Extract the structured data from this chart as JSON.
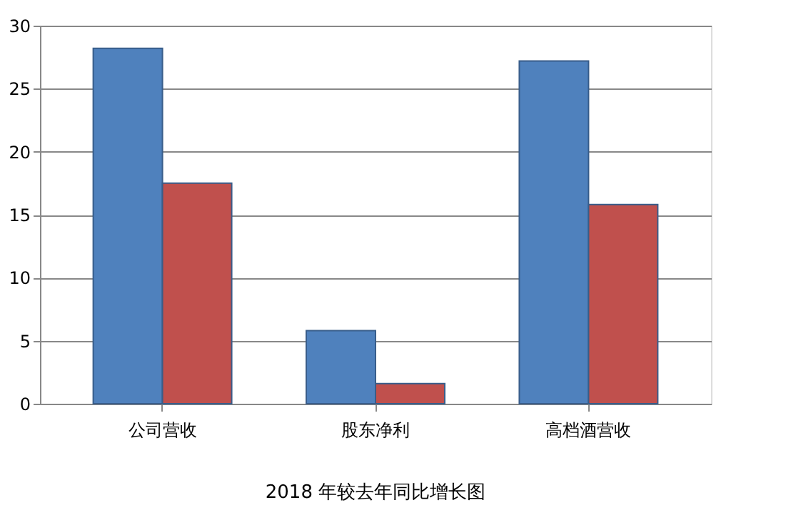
{
  "chart_data": {
    "type": "bar",
    "title": "2018 年较去年同比增长图",
    "categories": [
      "公司营收",
      "股东净利",
      "高档酒营收"
    ],
    "series": [
      {
        "color": "#4f81bd",
        "values": [
          28.2,
          5.8,
          27.2
        ]
      },
      {
        "color": "#c0504d",
        "values": [
          17.5,
          1.6,
          15.8
        ]
      }
    ],
    "ylim": [
      0,
      30
    ],
    "yticks": [
      0,
      5,
      10,
      15,
      20,
      25,
      30
    ],
    "grid": "y",
    "legend": false
  }
}
